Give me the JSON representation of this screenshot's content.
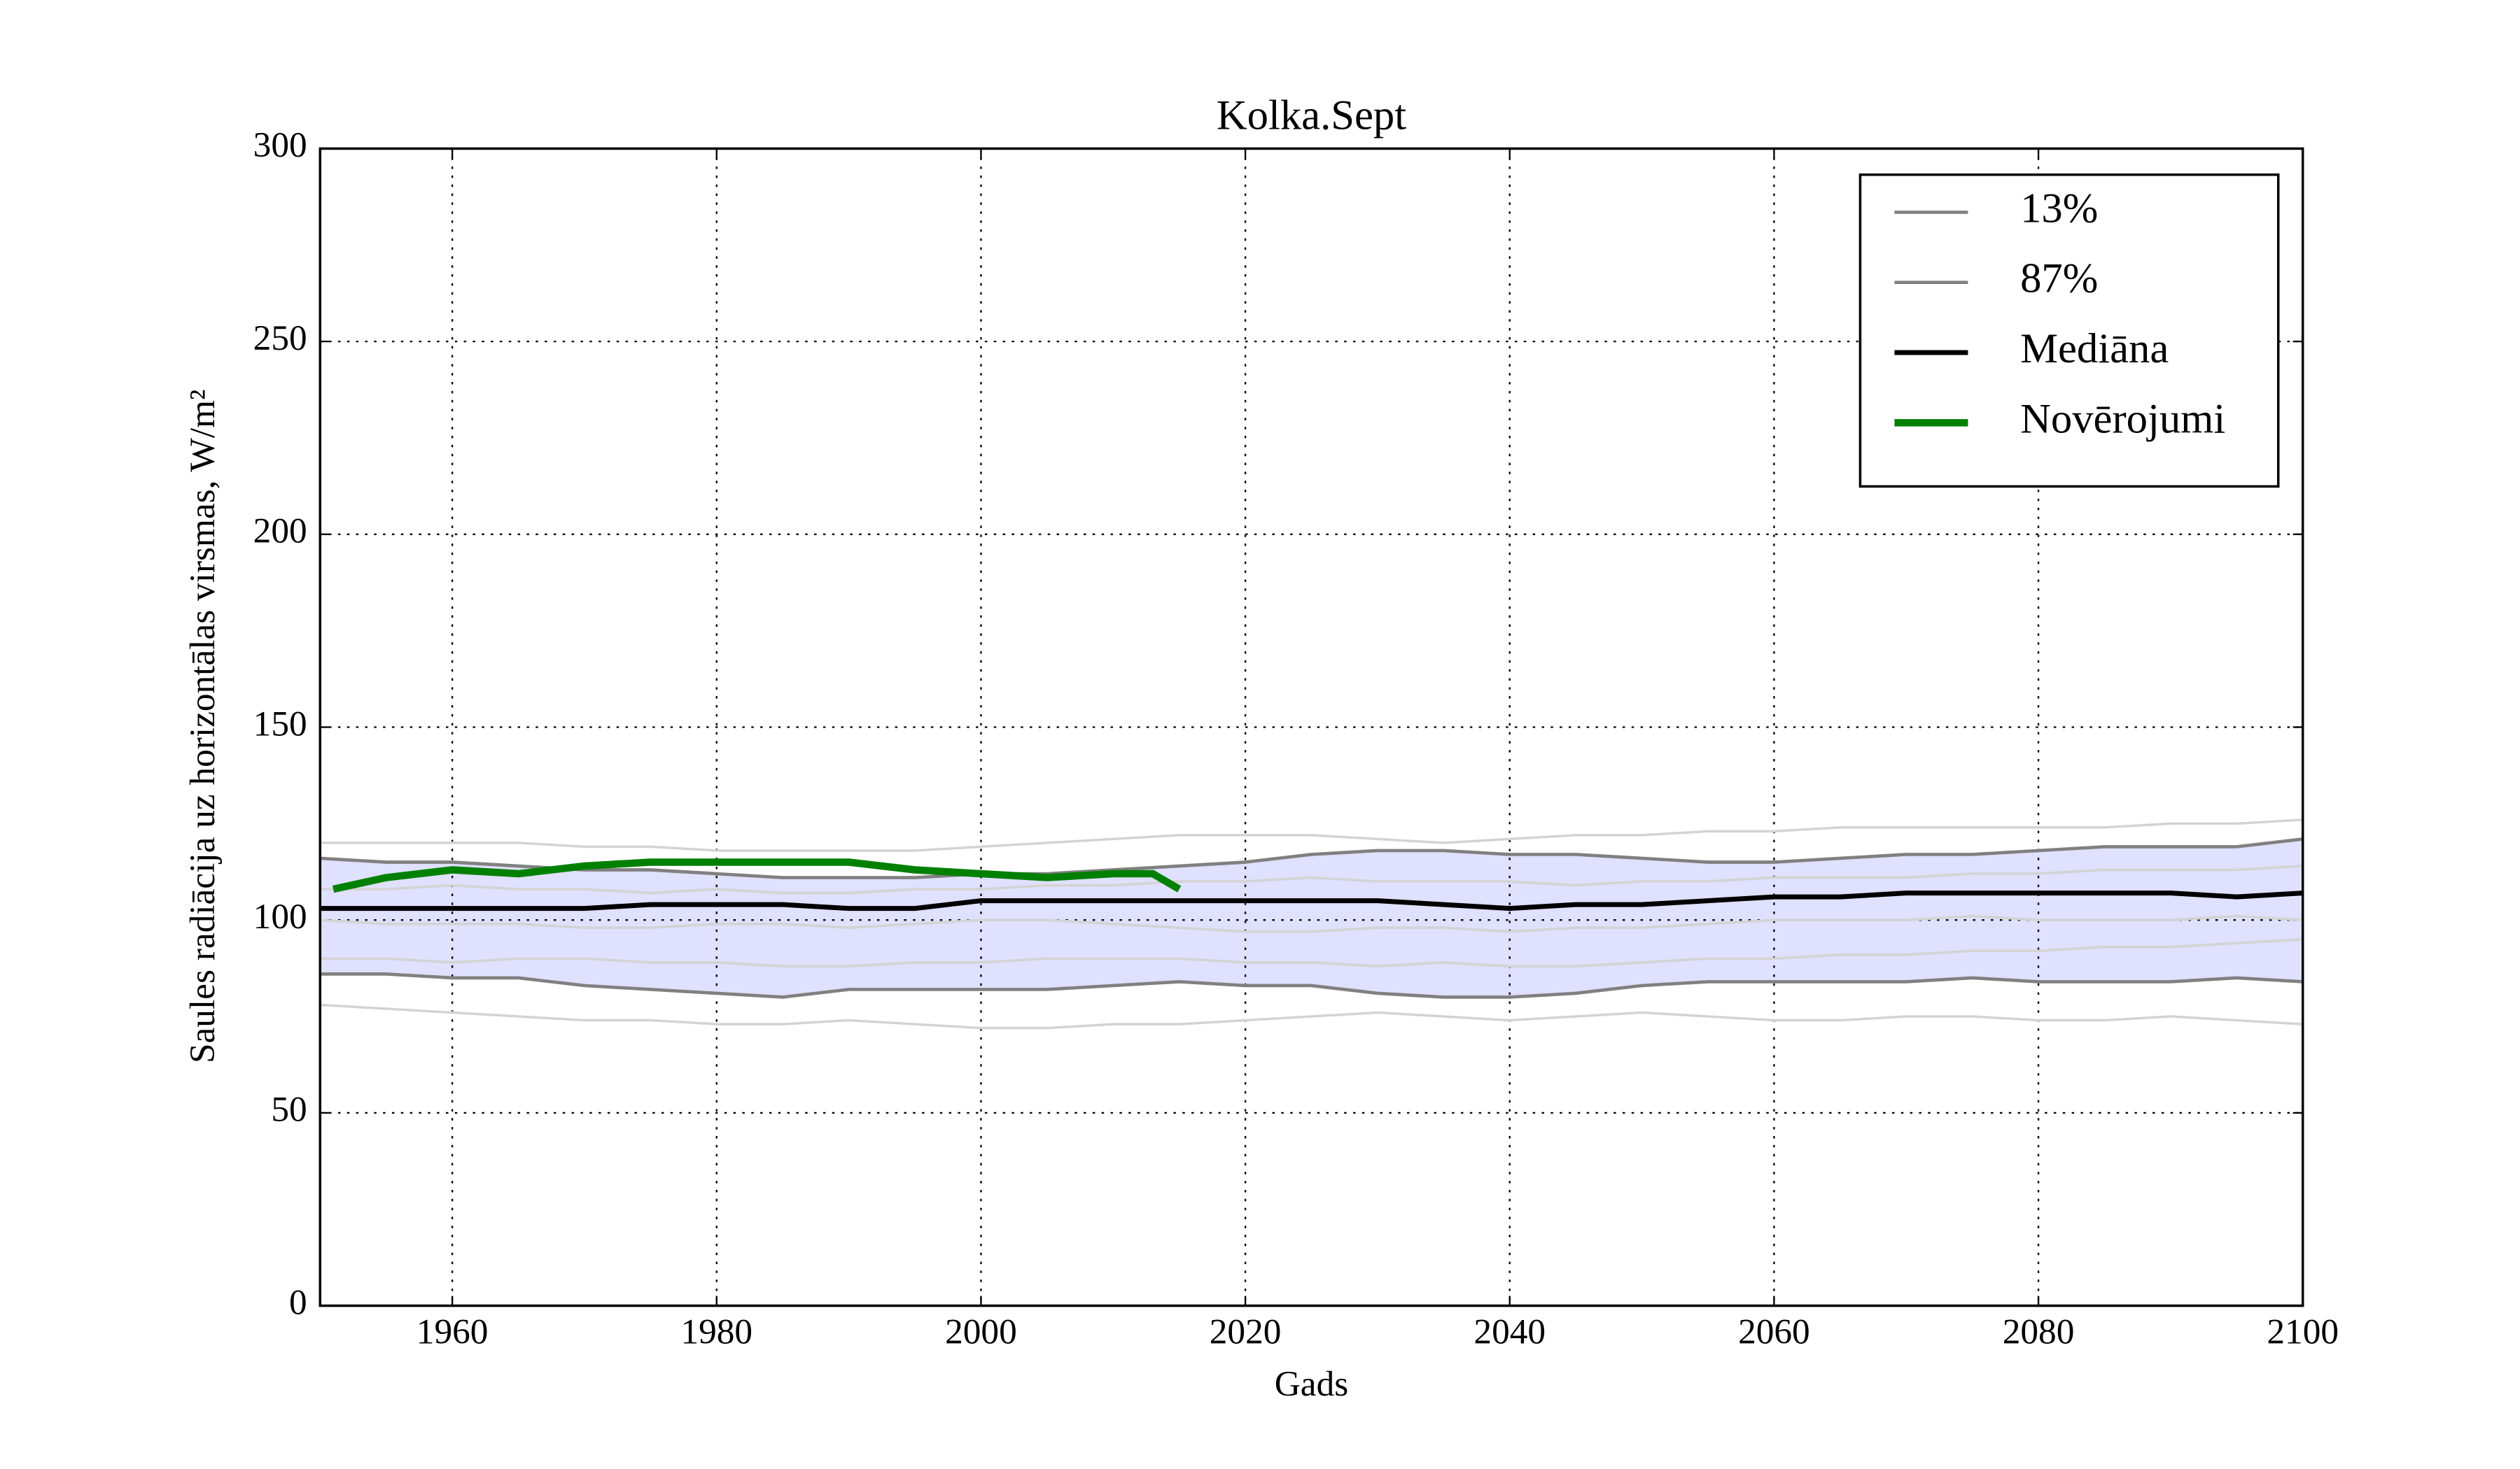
{
  "chart_data": {
    "type": "line",
    "title": "Kolka.Sept",
    "xlabel": "Gads",
    "ylabel": "Saules radiācija uz horizontālas virsmas, W/m²",
    "x": [
      1950,
      1955,
      1960,
      1965,
      1970,
      1975,
      1980,
      1985,
      1990,
      1995,
      2000,
      2005,
      2010,
      2015,
      2020,
      2025,
      2030,
      2035,
      2040,
      2045,
      2050,
      2055,
      2060,
      2065,
      2070,
      2075,
      2080,
      2085,
      2090,
      2095,
      2100
    ],
    "series": [
      {
        "name": "13%",
        "color": "#808080",
        "values": [
          86,
          86,
          85,
          85,
          83,
          82,
          81,
          80,
          82,
          82,
          82,
          82,
          83,
          84,
          83,
          83,
          81,
          80,
          80,
          81,
          83,
          84,
          84,
          84,
          84,
          85,
          84,
          84,
          84,
          85,
          84
        ]
      },
      {
        "name": "87%",
        "color": "#808080",
        "values": [
          116,
          115,
          115,
          114,
          113,
          113,
          112,
          111,
          111,
          111,
          112,
          112,
          113,
          114,
          115,
          117,
          118,
          118,
          117,
          117,
          116,
          115,
          115,
          116,
          117,
          117,
          118,
          119,
          119,
          119,
          121
        ]
      },
      {
        "name": "Mediāna",
        "color": "#000000",
        "values": [
          103,
          103,
          103,
          103,
          103,
          104,
          104,
          104,
          103,
          103,
          105,
          105,
          105,
          105,
          105,
          105,
          105,
          104,
          103,
          104,
          104,
          105,
          106,
          106,
          107,
          107,
          107,
          107,
          107,
          106,
          107
        ]
      },
      {
        "name": "Novērojumi",
        "color": "#008000",
        "x": [
          1951,
          1955,
          1960,
          1965,
          1970,
          1975,
          1980,
          1985,
          1990,
          1995,
          2000,
          2005,
          2010,
          2013,
          2015
        ],
        "values": [
          108,
          111,
          113,
          112,
          114,
          115,
          115,
          115,
          115,
          113,
          112,
          111,
          112,
          112,
          108
        ]
      }
    ],
    "ensemble": [
      {
        "color": "#d3d3d3",
        "values": [
          120,
          120,
          120,
          120,
          119,
          119,
          118,
          118,
          118,
          118,
          119,
          120,
          121,
          122,
          122,
          122,
          121,
          120,
          121,
          122,
          122,
          123,
          123,
          124,
          124,
          124,
          124,
          124,
          125,
          125,
          126
        ]
      },
      {
        "color": "#d3d3d3",
        "values": [
          78,
          77,
          76,
          75,
          74,
          74,
          73,
          73,
          74,
          73,
          72,
          72,
          73,
          73,
          74,
          75,
          76,
          75,
          74,
          75,
          76,
          75,
          74,
          74,
          75,
          75,
          74,
          74,
          75,
          74,
          73
        ]
      },
      {
        "color": "#d3d3d3",
        "values": [
          100,
          99,
          99,
          99,
          98,
          98,
          99,
          99,
          98,
          99,
          100,
          100,
          99,
          98,
          97,
          97,
          98,
          98,
          97,
          98,
          98,
          99,
          100,
          100,
          100,
          101,
          100,
          100,
          100,
          101,
          100
        ]
      },
      {
        "color": "#d3d3d3",
        "values": [
          108,
          108,
          109,
          108,
          108,
          107,
          108,
          107,
          107,
          108,
          108,
          109,
          109,
          110,
          110,
          111,
          110,
          110,
          110,
          109,
          110,
          110,
          111,
          111,
          111,
          112,
          112,
          113,
          113,
          113,
          114
        ]
      },
      {
        "color": "#d3d3d3",
        "values": [
          90,
          90,
          89,
          90,
          90,
          89,
          89,
          88,
          88,
          89,
          89,
          90,
          90,
          90,
          89,
          89,
          88,
          89,
          88,
          88,
          89,
          90,
          90,
          91,
          91,
          92,
          92,
          93,
          93,
          94,
          95
        ]
      }
    ],
    "band_color": "#e0e0ff",
    "xlim": [
      1950,
      2100
    ],
    "xticks": [
      1960,
      1980,
      2000,
      2020,
      2040,
      2060,
      2080,
      2100
    ],
    "ylim": [
      0,
      300
    ],
    "yticks": [
      0,
      50,
      100,
      150,
      200,
      250,
      300
    ],
    "grid": true,
    "legend": "upper right"
  }
}
